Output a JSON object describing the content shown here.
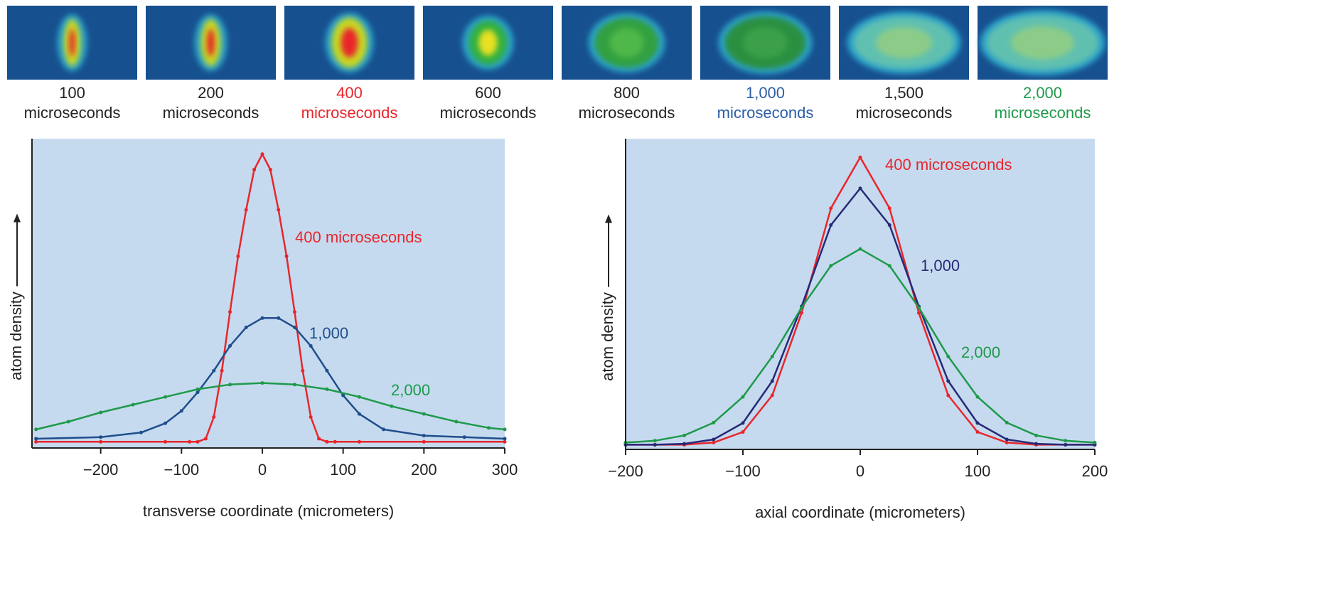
{
  "snapshots": [
    {
      "time": "100",
      "unit": "microseconds",
      "color": "#222222"
    },
    {
      "time": "200",
      "unit": "microseconds",
      "color": "#222222"
    },
    {
      "time": "400",
      "unit": "microseconds",
      "color": "#e8262b"
    },
    {
      "time": "600",
      "unit": "microseconds",
      "color": "#222222"
    },
    {
      "time": "800",
      "unit": "microseconds",
      "color": "#222222"
    },
    {
      "time": "1,000",
      "unit": "microseconds",
      "color": "#2a5ea8"
    },
    {
      "time": "1,500",
      "unit": "microseconds",
      "color": "#222222"
    },
    {
      "time": "2,000",
      "unit": "microseconds",
      "color": "#1e9a4a"
    }
  ],
  "chart_data": [
    {
      "type": "line",
      "x_label": "transverse coordinate (micrometers)",
      "y_label": "atom density",
      "xlim": [
        -285,
        300
      ],
      "ylim": [
        0,
        100
      ],
      "xticks": [
        {
          "value": -200,
          "label": "−200"
        },
        {
          "value": -100,
          "label": "−100"
        },
        0,
        100,
        200,
        300
      ],
      "series": [
        {
          "name": "400 microseconds",
          "color": "#e8262b",
          "x": [
            -280,
            -200,
            -120,
            -90,
            -80,
            -70,
            -60,
            -50,
            -40,
            -30,
            -20,
            -10,
            0,
            10,
            20,
            30,
            40,
            50,
            60,
            70,
            80,
            90,
            120,
            200,
            300
          ],
          "values": [
            2,
            2,
            2,
            2,
            2,
            3,
            10,
            25,
            44,
            62,
            77,
            90,
            95,
            90,
            77,
            62,
            44,
            25,
            10,
            3,
            2,
            2,
            2,
            2,
            2
          ]
        },
        {
          "name": "1,000",
          "color": "#1f4e8c",
          "x": [
            -280,
            -200,
            -150,
            -120,
            -100,
            -80,
            -60,
            -40,
            -20,
            0,
            20,
            40,
            60,
            80,
            100,
            120,
            150,
            200,
            250,
            300
          ],
          "values": [
            3,
            3.5,
            5,
            8,
            12,
            18,
            25,
            33,
            39,
            42,
            42,
            39,
            33,
            25,
            17,
            11,
            6,
            4,
            3.5,
            3
          ]
        },
        {
          "name": "2,000",
          "color": "#1e9a4a",
          "x": [
            -280,
            -240,
            -200,
            -160,
            -120,
            -80,
            -40,
            0,
            40,
            80,
            120,
            160,
            200,
            240,
            280,
            300
          ],
          "values": [
            6,
            8.5,
            11.5,
            14,
            16.5,
            19,
            20.5,
            21,
            20.5,
            19,
            16.5,
            13.5,
            11,
            8.5,
            6.5,
            6
          ]
        }
      ]
    },
    {
      "type": "line",
      "x_label": "axial coordinate (micrometers)",
      "y_label": "atom density",
      "xlim": [
        -200,
        200
      ],
      "ylim": [
        0,
        100
      ],
      "xticks": [
        {
          "value": -200,
          "label": "−200"
        },
        {
          "value": -100,
          "label": "−100"
        },
        0,
        100,
        200
      ],
      "series": [
        {
          "name": "400 microseconds",
          "color": "#e8262b",
          "x": [
            -200,
            -175,
            -150,
            -125,
            -100,
            -75,
            -50,
            -25,
            0,
            25,
            50,
            75,
            100,
            125,
            150,
            175,
            200
          ],
          "values": [
            1.5,
            1.5,
            1.5,
            2.2,
            5.6,
            17.4,
            43.9,
            77.6,
            94,
            77.6,
            43.9,
            17.4,
            5.6,
            2.2,
            1.5,
            1.5,
            1.5
          ]
        },
        {
          "name": "1,000",
          "color": "#252a78",
          "x": [
            -200,
            -175,
            -150,
            -125,
            -100,
            -75,
            -50,
            -25,
            0,
            25,
            50,
            75,
            100,
            125,
            150,
            175,
            200
          ],
          "values": [
            1.5,
            1.5,
            1.8,
            3.2,
            8.5,
            22,
            46,
            72.2,
            84,
            72.2,
            46,
            22,
            8.5,
            3.2,
            1.8,
            1.5,
            1.5
          ]
        },
        {
          "name": "2,000",
          "color": "#1e9a4a",
          "x": [
            -200,
            -175,
            -150,
            -125,
            -100,
            -75,
            -50,
            -25,
            0,
            25,
            50,
            75,
            100,
            125,
            150,
            175,
            200
          ],
          "values": [
            2.2,
            2.8,
            4.5,
            8.6,
            16.9,
            29.9,
            45.6,
            59.1,
            64.5,
            59.1,
            45.6,
            29.9,
            16.9,
            8.6,
            4.5,
            2.8,
            2.2
          ]
        }
      ]
    }
  ]
}
